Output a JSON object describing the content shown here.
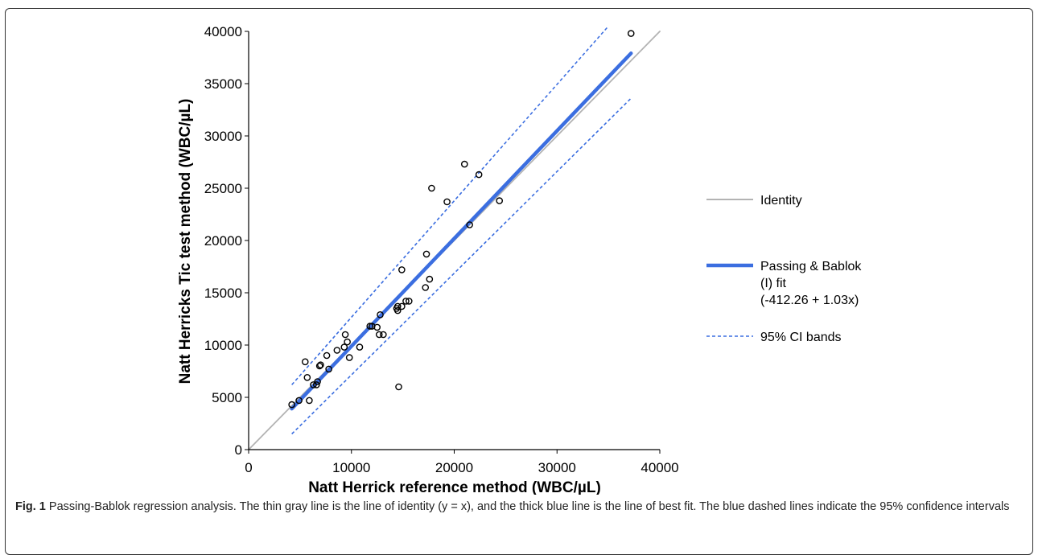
{
  "chart_data": {
    "type": "scatter",
    "xlabel": "Natt Herrick reference method (WBC/µL)",
    "ylabel": "Natt Herricks Tic test method (WBC/µL)",
    "xlim": [
      0,
      40000
    ],
    "ylim": [
      0,
      40000
    ],
    "xticks": [
      "0",
      "10000",
      "20000",
      "30000",
      "40000"
    ],
    "yticks": [
      "0",
      "5000",
      "10000",
      "15000",
      "20000",
      "25000",
      "30000",
      "35000",
      "40000"
    ],
    "points": [
      [
        4200,
        4300
      ],
      [
        4900,
        4700
      ],
      [
        5700,
        6900
      ],
      [
        5500,
        8400
      ],
      [
        5900,
        4700
      ],
      [
        6300,
        6200
      ],
      [
        6600,
        6200
      ],
      [
        6700,
        6500
      ],
      [
        6900,
        8000
      ],
      [
        7000,
        8100
      ],
      [
        7600,
        9000
      ],
      [
        7800,
        7700
      ],
      [
        8600,
        9500
      ],
      [
        9300,
        9800
      ],
      [
        9400,
        11000
      ],
      [
        9600,
        10300
      ],
      [
        9800,
        8800
      ],
      [
        10800,
        9800
      ],
      [
        11800,
        11800
      ],
      [
        12000,
        11800
      ],
      [
        12500,
        11700
      ],
      [
        12700,
        11000
      ],
      [
        12800,
        12900
      ],
      [
        13100,
        11000
      ],
      [
        14400,
        13500
      ],
      [
        14500,
        13700
      ],
      [
        14500,
        13300
      ],
      [
        14600,
        6000
      ],
      [
        14900,
        13700
      ],
      [
        14900,
        17200
      ],
      [
        15300,
        14200
      ],
      [
        15600,
        14200
      ],
      [
        17200,
        15500
      ],
      [
        17300,
        18700
      ],
      [
        17600,
        16300
      ],
      [
        17800,
        25000
      ],
      [
        19300,
        23700
      ],
      [
        21000,
        27300
      ],
      [
        21500,
        21500
      ],
      [
        22400,
        26300
      ],
      [
        24400,
        23800
      ],
      [
        37200,
        39800
      ]
    ],
    "series": [
      {
        "name": "Identity",
        "x": [
          0,
          40000
        ],
        "y": [
          0,
          40000
        ],
        "color": "#b3b3b3",
        "style": "solid"
      },
      {
        "name": "Passing & Bablok (I) fit (-412.26 + 1.03x)",
        "x": [
          4200,
          37200
        ],
        "y": [
          3914,
          37904
        ],
        "color": "#3b6ee0",
        "style": "thick"
      },
      {
        "name": "95% CI bands",
        "x": [
          4200,
          35000
        ],
        "y": [
          6200,
          40500
        ],
        "color": "#3b6ee0",
        "style": "dashed"
      },
      {
        "name": "",
        "x": [
          4200,
          37200
        ],
        "y": [
          1500,
          33600
        ],
        "color": "#3b6ee0",
        "style": "dashed"
      }
    ],
    "grid": false,
    "legend_position": "right"
  },
  "legend": {
    "identity": "Identity",
    "fit_line1": "Passing & Bablok",
    "fit_line2": "(I) fit",
    "fit_line3": "(-412.26 + 1.03x)",
    "ci": "95% CI bands"
  },
  "caption": {
    "label": "Fig. 1",
    "text": " Passing-Bablok regression analysis. The thin gray line is the line of identity (y = x), and the thick blue line is the line of best fit. The blue dashed lines indicate the 95% confidence intervals"
  }
}
